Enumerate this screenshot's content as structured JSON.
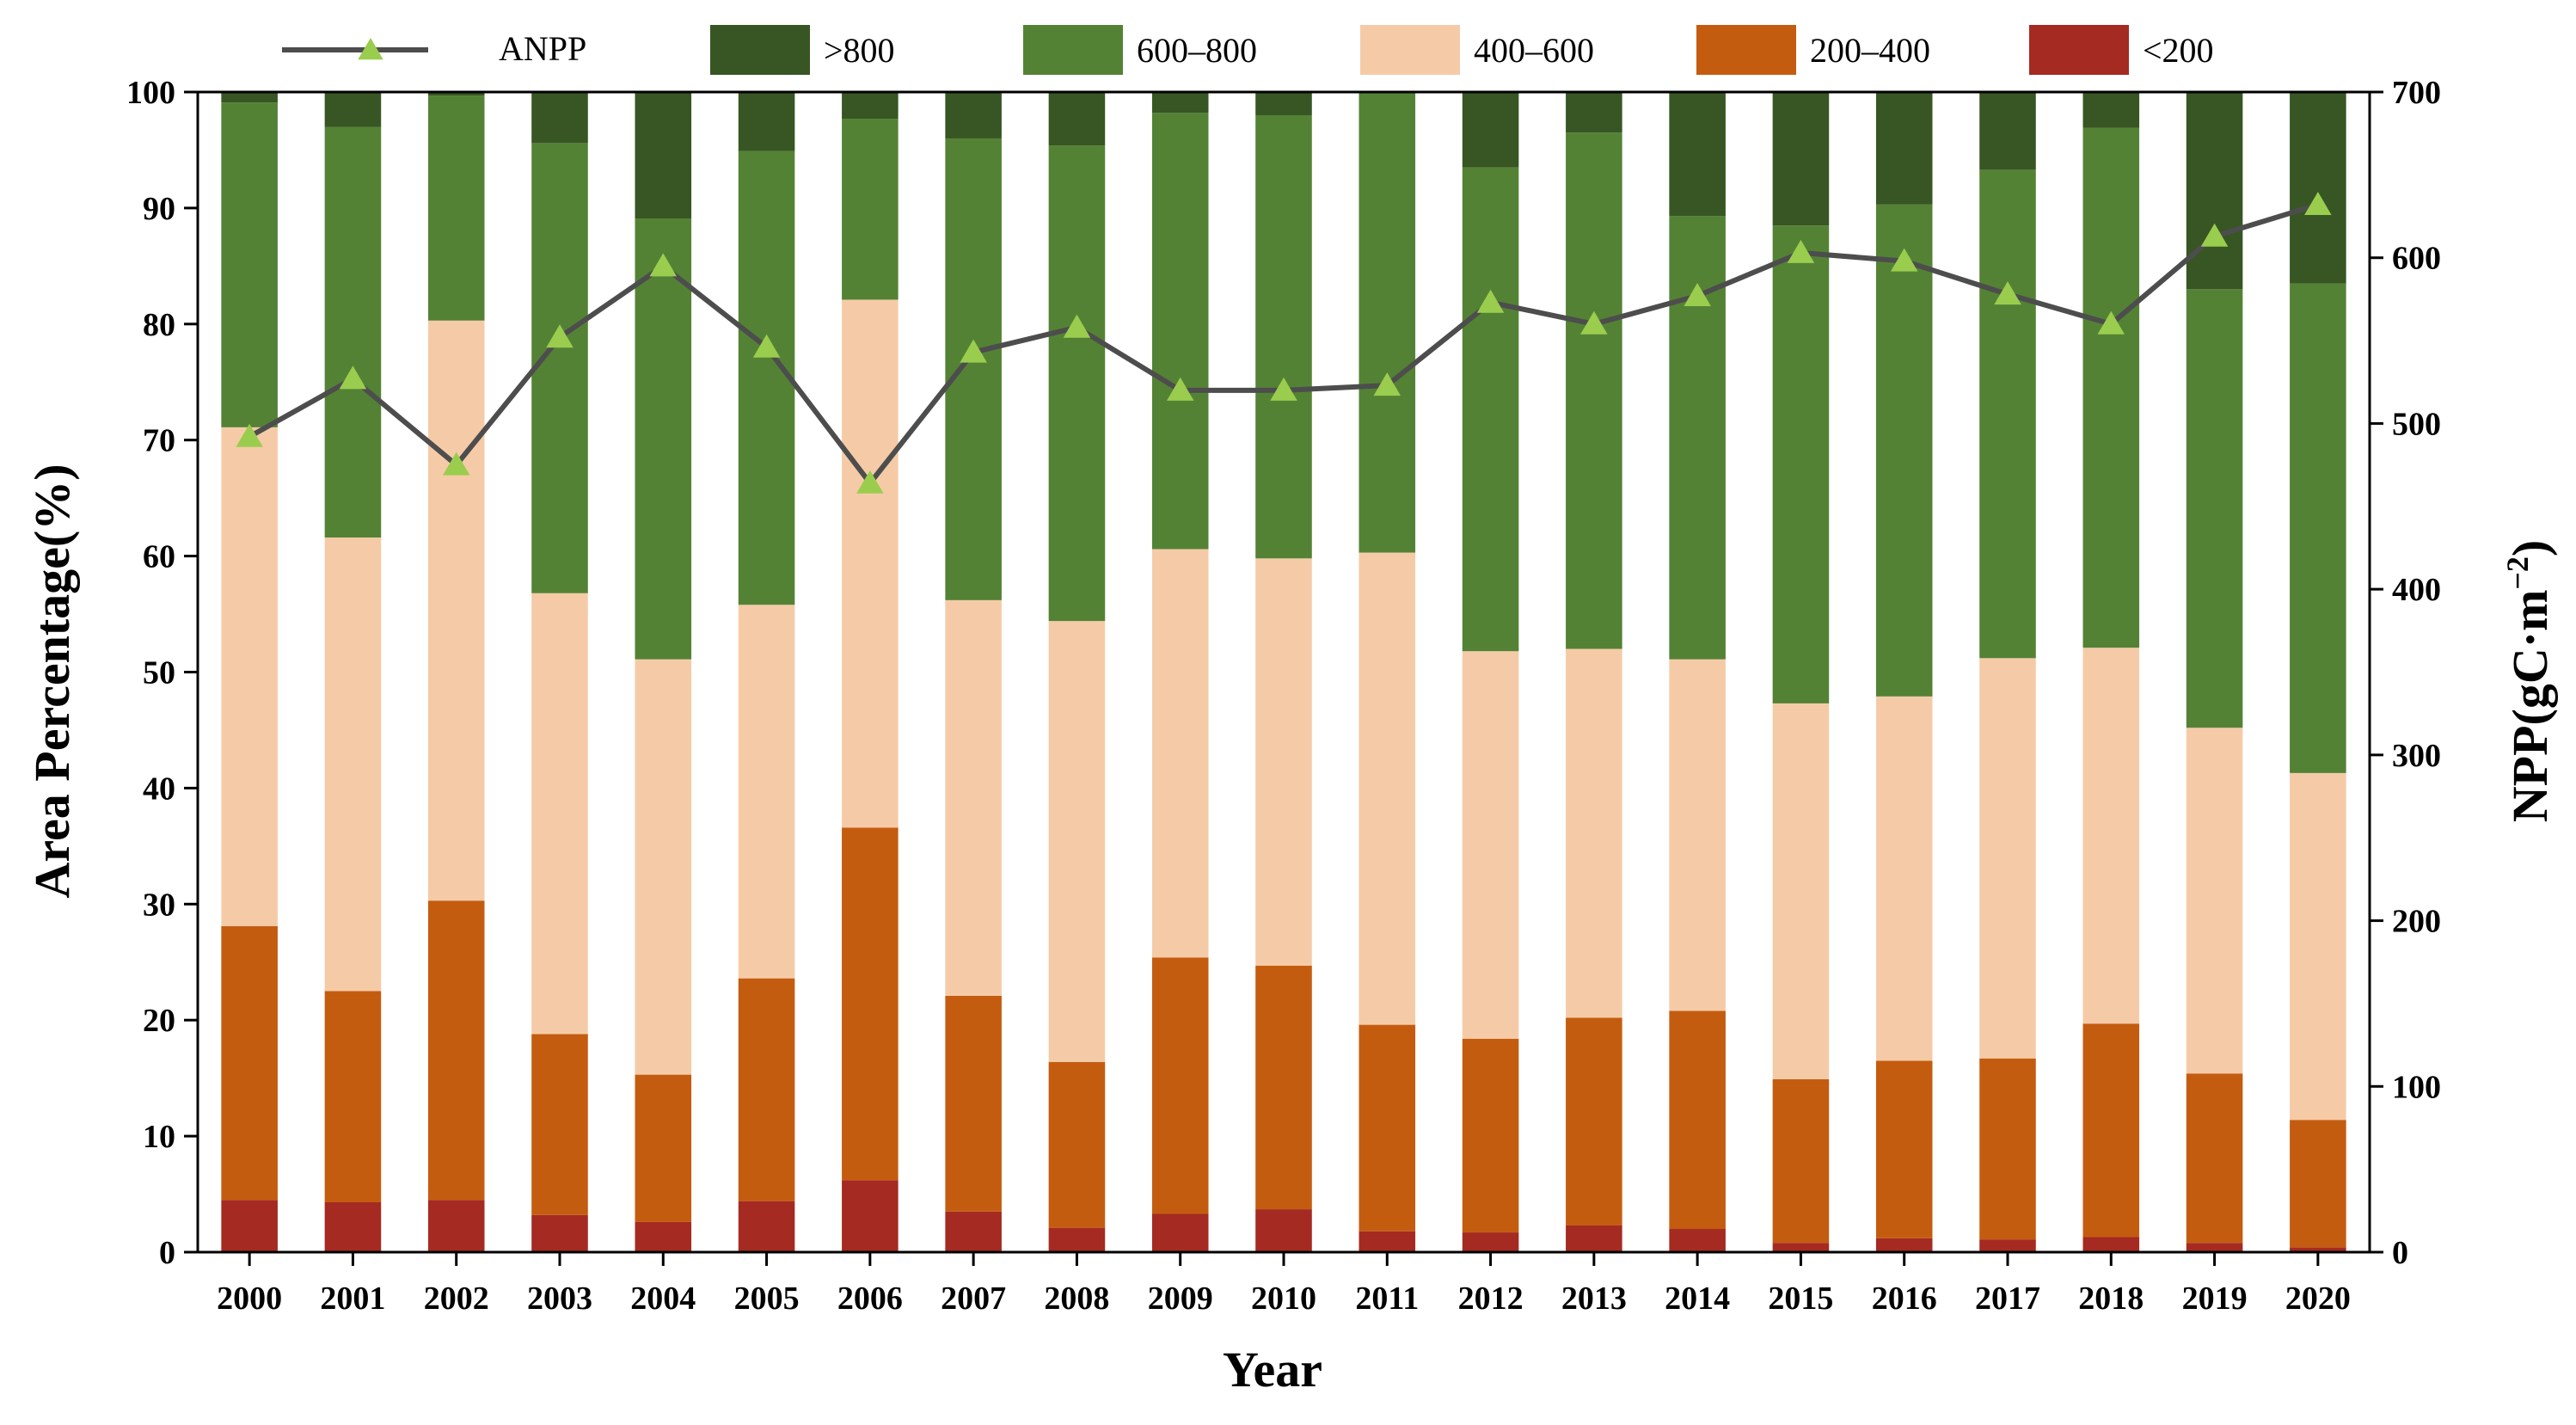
{
  "chart_data": {
    "type": "bar",
    "stacked": true,
    "xlabel": "Year",
    "ylabel": "Area Percentage(%)",
    "y2label_main": "NPP(gC·m",
    "y2label_sup": "−2",
    "y2label_close": ")",
    "ylim": [
      0,
      100
    ],
    "y2lim": [
      0,
      700
    ],
    "yticks": [
      "0",
      "10",
      "20",
      "30",
      "40",
      "50",
      "60",
      "70",
      "80",
      "90",
      "100"
    ],
    "y2ticks": [
      "0",
      "100",
      "200",
      "300",
      "400",
      "500",
      "600",
      "700"
    ],
    "categories": [
      "2000",
      "2001",
      "2002",
      "2003",
      "2004",
      "2005",
      "2006",
      "2007",
      "2008",
      "2009",
      "2010",
      "2011",
      "2012",
      "2013",
      "2014",
      "2015",
      "2016",
      "2017",
      "2018",
      "2019",
      "2020"
    ],
    "series": [
      {
        "name": "<200",
        "color": "#a52a22",
        "values": [
          4.5,
          4.3,
          4.5,
          3.2,
          2.6,
          4.4,
          6.2,
          3.5,
          2.1,
          3.3,
          3.7,
          1.8,
          1.7,
          2.3,
          2.0,
          0.8,
          1.2,
          1.1,
          1.3,
          0.8,
          0.4
        ]
      },
      {
        "name": "200–400",
        "color": "#c45c10",
        "values": [
          23.6,
          18.2,
          25.8,
          15.6,
          12.7,
          19.2,
          30.4,
          18.6,
          14.3,
          22.1,
          21.0,
          17.8,
          16.7,
          17.9,
          18.8,
          14.1,
          15.3,
          15.6,
          18.4,
          14.6,
          11.0
        ]
      },
      {
        "name": "400–600",
        "color": "#f5cba7",
        "values": [
          43.0,
          39.1,
          50.0,
          38.0,
          35.8,
          32.2,
          45.5,
          34.1,
          38.0,
          35.2,
          35.1,
          40.7,
          33.4,
          31.8,
          30.3,
          32.4,
          31.4,
          34.5,
          32.4,
          29.8,
          29.9
        ]
      },
      {
        "name": "600–800",
        "color": "#548235",
        "values": [
          28.0,
          35.4,
          19.4,
          38.8,
          38.0,
          39.1,
          15.6,
          39.8,
          41.0,
          37.6,
          38.2,
          39.7,
          41.7,
          44.5,
          38.2,
          41.2,
          42.4,
          42.1,
          44.8,
          37.8,
          42.2
        ]
      },
      {
        "name": ">800",
        "color": "#375623",
        "values": [
          0.9,
          3.0,
          0.3,
          4.4,
          10.9,
          5.1,
          2.3,
          3.9,
          4.6,
          1.8,
          2.0,
          0.0,
          6.5,
          3.5,
          10.7,
          11.5,
          9.7,
          6.7,
          3.1,
          17.0,
          16.5
        ]
      }
    ],
    "line": {
      "name": "ANPP",
      "axis": "right",
      "color": "#4d4d4d",
      "marker_color": "#9acd4e",
      "values": [
        492,
        527,
        475,
        552,
        595,
        546,
        464,
        543,
        558,
        520,
        520,
        523,
        573,
        560,
        577,
        603,
        598,
        578,
        560,
        613,
        632
      ]
    },
    "legend_order": [
      "ANPP",
      ">800",
      "600–800",
      "400–600",
      "200–400",
      "<200"
    ],
    "legend_labels": {
      "ANPP": "ANPP",
      ">800": ">800",
      "600–800": "600–800",
      "400–600": "400–600",
      "200–400": "200–400",
      "<200": "<200"
    },
    "legend_position": "top"
  }
}
